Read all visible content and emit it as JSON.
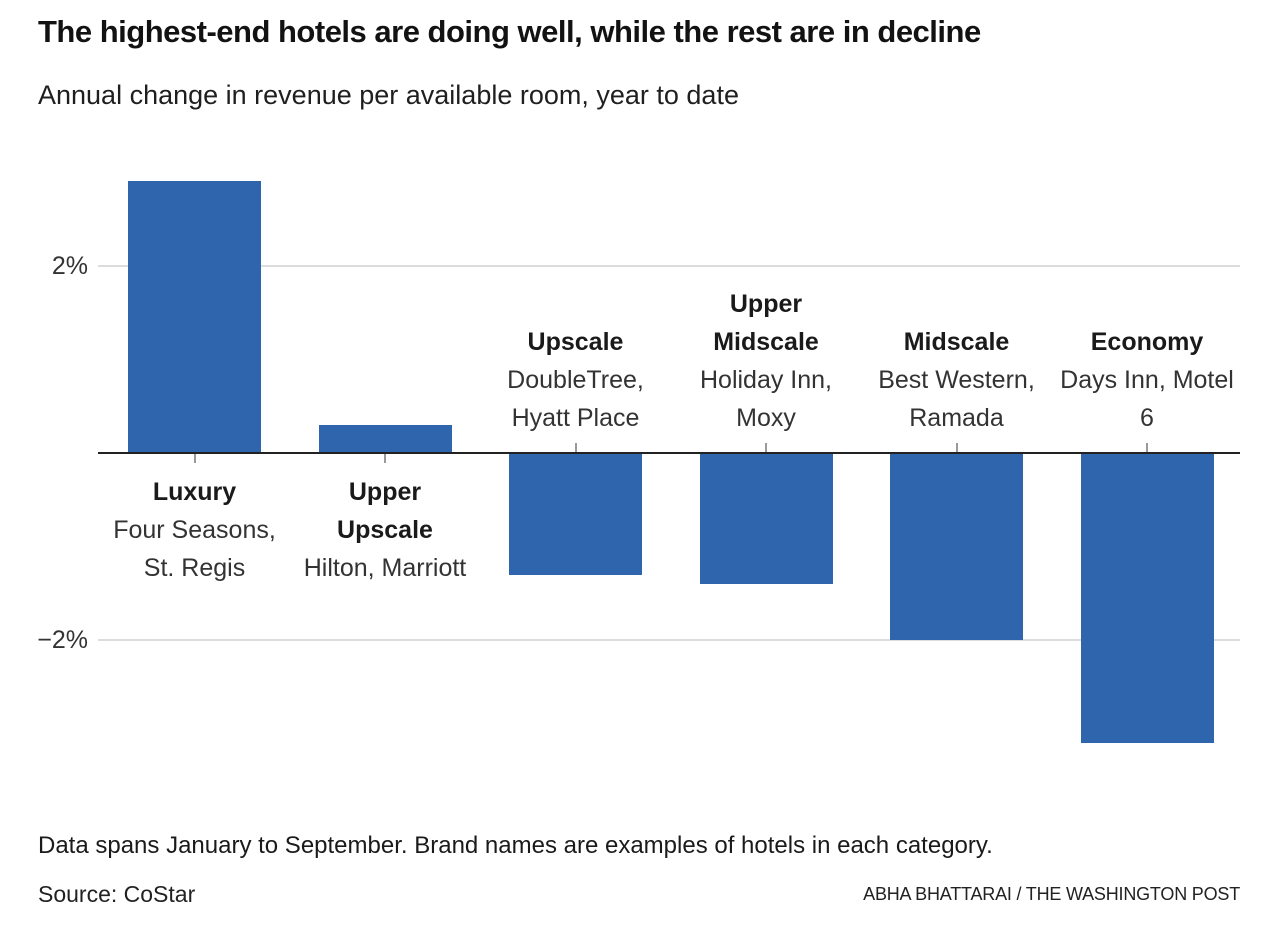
{
  "header": {
    "title": "The highest-end hotels are doing well, while the rest are in decline",
    "subtitle": "Annual change in revenue per available room, year to date"
  },
  "chart_data": {
    "type": "bar",
    "title": "The highest-end hotels are doing well, while the rest are in decline",
    "subtitle": "Annual change in revenue per available room, year to date",
    "categories": [
      "Luxury",
      "Upper Upscale",
      "Upscale",
      "Upper Midscale",
      "Midscale",
      "Economy"
    ],
    "category_name_lines": [
      [
        "Luxury"
      ],
      [
        "Upper",
        "Upscale"
      ],
      [
        "Upscale"
      ],
      [
        "Upper",
        "Midscale"
      ],
      [
        "Midscale"
      ],
      [
        "Economy"
      ]
    ],
    "brand_example_lines": [
      [
        "Four Seasons,",
        "St. Regis"
      ],
      [
        "Hilton, Marriott"
      ],
      [
        "DoubleTree,",
        "Hyatt Place"
      ],
      [
        "Holiday Inn,",
        "Moxy"
      ],
      [
        "Best Western,",
        "Ramada"
      ],
      [
        "Days Inn, Motel",
        "6"
      ]
    ],
    "values": [
      2.9,
      0.3,
      -1.3,
      -1.4,
      -2.0,
      -3.1
    ],
    "unit": "%",
    "yticks": [
      {
        "value": 2,
        "label": "2%"
      },
      {
        "value": -2,
        "label": "−2%"
      }
    ],
    "ylim": [
      -3.3,
      2.9
    ],
    "grid": true,
    "legend": "none",
    "bar_color": "#2f65ad",
    "axis_color": "#222222",
    "gridline_color": "#dcdcdc",
    "tick_color": "#999999"
  },
  "footer": {
    "note": "Data spans January to September. Brand names are examples of hotels in each category.",
    "source": "Source: CoStar",
    "credit": "ABHA BHATTARAI / THE WASHINGTON POST"
  }
}
